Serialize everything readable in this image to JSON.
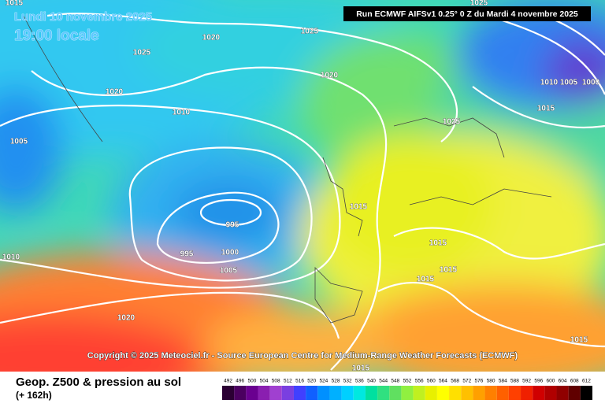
{
  "header": {
    "date": "Lundi 10 novembre 2025",
    "time": "19:00 locale",
    "run": "Run ECMWF AIFSv1 0.25° 0 Z du Mardi 4 novembre 2025"
  },
  "isobar_labels": [
    1015,
    1020,
    1025,
    1025,
    1020,
    1020,
    1010,
    1005,
    1025,
    1010,
    1005,
    1000,
    1015,
    1025,
    1015,
    995,
    995,
    1000,
    1005,
    1015,
    1015,
    1015,
    1010,
    1020,
    1015,
    1015
  ],
  "copyright": "Copyright © 2025 Meteociel.fr - Source European Centre for Medium-Range Weather Forecasts (ECMWF)",
  "footer": {
    "title": "Geop. Z500 & pression au sol",
    "lead": "(+ 162h)"
  },
  "scale": {
    "values": [
      492,
      496,
      500,
      504,
      508,
      512,
      516,
      520,
      524,
      528,
      532,
      536,
      540,
      544,
      548,
      552,
      556,
      560,
      564,
      568,
      572,
      576,
      580,
      584,
      588,
      592,
      596,
      600,
      604,
      608,
      612
    ],
    "colors": [
      "#2b0033",
      "#4b0060",
      "#6a0090",
      "#8a1fb0",
      "#a040d0",
      "#7a3fe0",
      "#4040ff",
      "#1060ff",
      "#0090ff",
      "#00b0ff",
      "#00d0ff",
      "#00e8e0",
      "#00e0a0",
      "#30e080",
      "#60e060",
      "#90f040",
      "#c0f020",
      "#e8f000",
      "#ffff00",
      "#ffe000",
      "#ffc000",
      "#ffa000",
      "#ff8000",
      "#ff6000",
      "#ff4000",
      "#f02000",
      "#d00000",
      "#b00000",
      "#900000",
      "#600000",
      "#000000"
    ]
  }
}
